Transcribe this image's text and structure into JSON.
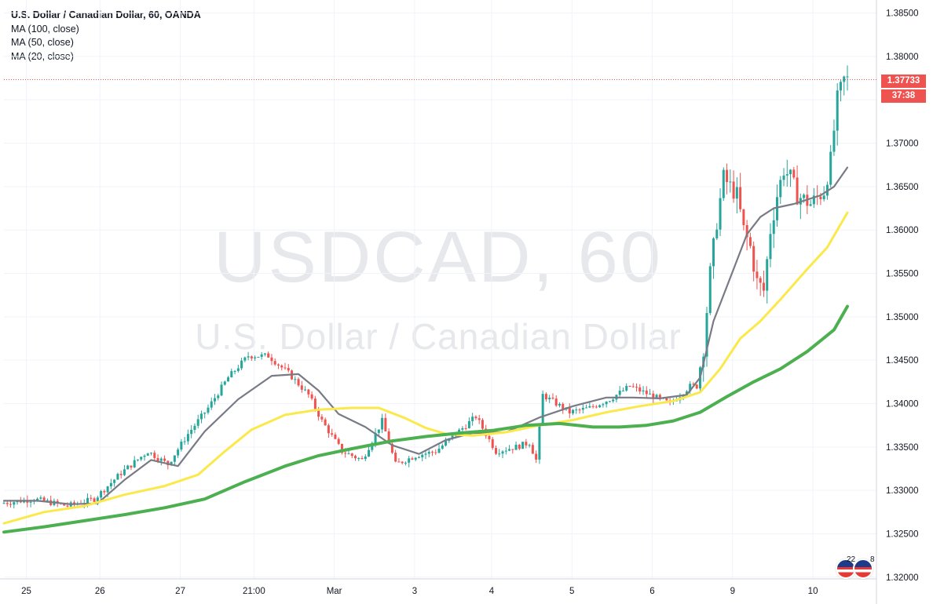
{
  "legend": {
    "title": "U.S. Dollar / Canadian Dollar, 60, OANDA",
    "ma100": "MA (100, close)",
    "ma50": "MA (50, close)",
    "ma20": "MA (20, close)"
  },
  "watermark": {
    "symbol": "USDCAD, 60",
    "description": "U.S. Dollar / Canadian Dollar"
  },
  "last_price": {
    "price": "1.37733",
    "countdown": "37:38"
  },
  "events": {
    "left_count": "22",
    "right_count": "8"
  },
  "colors": {
    "up": "#26a69a",
    "down": "#ef5350",
    "ma20": "#787b86",
    "ma50": "#fbe94b",
    "ma100": "#4caf50",
    "grid": "#f0f3fa",
    "axis_text": "#131722"
  },
  "chart_data": {
    "type": "candlestick",
    "title": "U.S. Dollar / Canadian Dollar, 60, OANDA",
    "y_ticks": [
      1.385,
      1.38,
      1.375,
      1.37,
      1.365,
      1.36,
      1.355,
      1.35,
      1.345,
      1.34,
      1.335,
      1.33,
      1.325,
      1.32
    ],
    "y_tick_labels": [
      "1.38500",
      "1.38000",
      "1.37500",
      "1.37000",
      "1.36500",
      "1.36000",
      "1.35500",
      "1.35000",
      "1.34500",
      "1.34000",
      "1.33500",
      "1.33000",
      "1.32500",
      "1.32000"
    ],
    "ylim": [
      1.3198,
      1.3865
    ],
    "x_labels": [
      "25",
      "26",
      "27",
      "21:00",
      "Mar",
      "3",
      "4",
      "5",
      "6",
      "9",
      "10"
    ],
    "x_label_bar_index": [
      2,
      24,
      48,
      70,
      94,
      118,
      141,
      165,
      189,
      213,
      237
    ],
    "grid": true,
    "series": [
      {
        "name": "MA (20, close)",
        "points": [
          [
            0,
            1.3288
          ],
          [
            10,
            1.3288
          ],
          [
            20,
            1.3284
          ],
          [
            28,
            1.3285
          ],
          [
            36,
            1.3312
          ],
          [
            44,
            1.3335
          ],
          [
            52,
            1.3328
          ],
          [
            60,
            1.3368
          ],
          [
            70,
            1.3405
          ],
          [
            80,
            1.3432
          ],
          [
            88,
            1.3434
          ],
          [
            94,
            1.3415
          ],
          [
            100,
            1.3388
          ],
          [
            108,
            1.3373
          ],
          [
            116,
            1.3352
          ],
          [
            124,
            1.3342
          ],
          [
            132,
            1.3358
          ],
          [
            140,
            1.3366
          ],
          [
            150,
            1.3367
          ],
          [
            160,
            1.3384
          ],
          [
            170,
            1.3397
          ],
          [
            180,
            1.3407
          ],
          [
            188,
            1.3407
          ],
          [
            196,
            1.3406
          ],
          [
            204,
            1.341
          ],
          [
            208,
            1.343
          ],
          [
            212,
            1.3495
          ],
          [
            218,
            1.3555
          ],
          [
            222,
            1.3595
          ],
          [
            226,
            1.3615
          ],
          [
            230,
            1.3625
          ],
          [
            236,
            1.363
          ],
          [
            244,
            1.364
          ],
          [
            248,
            1.365
          ],
          [
            252,
            1.3672
          ]
        ]
      },
      {
        "name": "MA (50, close)",
        "points": [
          [
            0,
            1.3262
          ],
          [
            12,
            1.3275
          ],
          [
            24,
            1.3282
          ],
          [
            36,
            1.3295
          ],
          [
            48,
            1.3305
          ],
          [
            58,
            1.3318
          ],
          [
            66,
            1.3345
          ],
          [
            74,
            1.337
          ],
          [
            84,
            1.3387
          ],
          [
            94,
            1.3393
          ],
          [
            104,
            1.3395
          ],
          [
            112,
            1.3395
          ],
          [
            120,
            1.3383
          ],
          [
            126,
            1.3372
          ],
          [
            132,
            1.3365
          ],
          [
            140,
            1.3363
          ],
          [
            150,
            1.3367
          ],
          [
            160,
            1.3375
          ],
          [
            170,
            1.3381
          ],
          [
            180,
            1.339
          ],
          [
            190,
            1.3397
          ],
          [
            200,
            1.3403
          ],
          [
            208,
            1.3413
          ],
          [
            214,
            1.344
          ],
          [
            220,
            1.3475
          ],
          [
            226,
            1.3495
          ],
          [
            232,
            1.352
          ],
          [
            240,
            1.3555
          ],
          [
            246,
            1.358
          ],
          [
            252,
            1.362
          ]
        ]
      },
      {
        "name": "MA (100, close)",
        "points": [
          [
            0,
            1.3252
          ],
          [
            12,
            1.3258
          ],
          [
            24,
            1.3265
          ],
          [
            36,
            1.3272
          ],
          [
            48,
            1.328
          ],
          [
            60,
            1.329
          ],
          [
            72,
            1.331
          ],
          [
            84,
            1.3328
          ],
          [
            94,
            1.334
          ],
          [
            104,
            1.3348
          ],
          [
            116,
            1.3357
          ],
          [
            126,
            1.3362
          ],
          [
            136,
            1.3366
          ],
          [
            146,
            1.3369
          ],
          [
            156,
            1.3375
          ],
          [
            166,
            1.3377
          ],
          [
            176,
            1.3373
          ],
          [
            184,
            1.3373
          ],
          [
            192,
            1.3375
          ],
          [
            200,
            1.338
          ],
          [
            208,
            1.339
          ],
          [
            216,
            1.3408
          ],
          [
            224,
            1.3425
          ],
          [
            232,
            1.344
          ],
          [
            240,
            1.346
          ],
          [
            248,
            1.3485
          ],
          [
            252,
            1.3512
          ]
        ]
      }
    ],
    "price_path": [
      [
        0,
        1.3285
      ],
      [
        10,
        1.329
      ],
      [
        20,
        1.3282
      ],
      [
        28,
        1.329
      ],
      [
        36,
        1.332
      ],
      [
        44,
        1.3345
      ],
      [
        50,
        1.333
      ],
      [
        56,
        1.3365
      ],
      [
        62,
        1.3395
      ],
      [
        68,
        1.343
      ],
      [
        74,
        1.3455
      ],
      [
        80,
        1.3455
      ],
      [
        86,
        1.3435
      ],
      [
        92,
        1.341
      ],
      [
        96,
        1.338
      ],
      [
        102,
        1.3345
      ],
      [
        108,
        1.3335
      ],
      [
        114,
        1.338
      ],
      [
        118,
        1.333
      ],
      [
        124,
        1.334
      ],
      [
        130,
        1.3345
      ],
      [
        136,
        1.3365
      ],
      [
        142,
        1.3385
      ],
      [
        148,
        1.3345
      ],
      [
        154,
        1.335
      ],
      [
        158,
        1.3355
      ],
      [
        160,
        1.3335
      ],
      [
        162,
        1.341
      ],
      [
        166,
        1.34
      ],
      [
        170,
        1.339
      ],
      [
        176,
        1.3395
      ],
      [
        182,
        1.3405
      ],
      [
        188,
        1.342
      ],
      [
        194,
        1.341
      ],
      [
        200,
        1.34
      ],
      [
        206,
        1.342
      ],
      [
        208,
        1.342
      ],
      [
        210,
        1.3465
      ],
      [
        212,
        1.355
      ],
      [
        214,
        1.361
      ],
      [
        216,
        1.366
      ],
      [
        220,
        1.364
      ],
      [
        222,
        1.36
      ],
      [
        224,
        1.358
      ],
      [
        226,
        1.354
      ],
      [
        228,
        1.353
      ],
      [
        230,
        1.36
      ],
      [
        232,
        1.364
      ],
      [
        234,
        1.367
      ],
      [
        236,
        1.366
      ],
      [
        238,
        1.364
      ],
      [
        242,
        1.363
      ],
      [
        246,
        1.3645
      ],
      [
        248,
        1.368
      ],
      [
        250,
        1.375
      ],
      [
        252,
        1.3773
      ]
    ],
    "bar_count": 253
  }
}
